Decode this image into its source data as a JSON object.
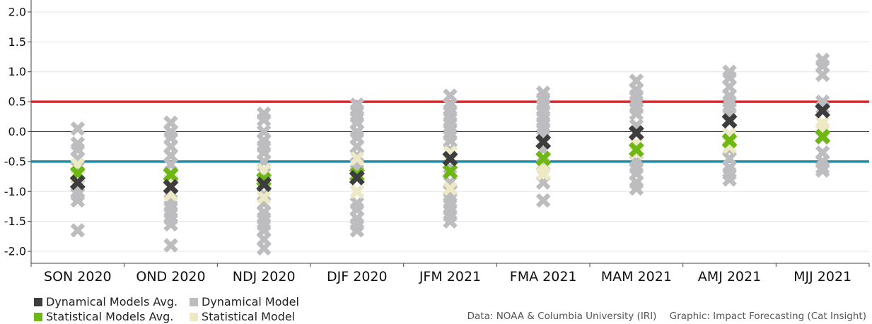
{
  "chart_data": {
    "type": "scatter",
    "title": "",
    "xlabel": "",
    "ylabel": "",
    "ylim": [
      -2.2,
      2.2
    ],
    "yticks": [
      2.0,
      1.5,
      1.0,
      0.5,
      0.0,
      -0.5,
      -1.0,
      -1.5,
      -2.0
    ],
    "ytick_labels": [
      "2.0",
      "1.5",
      "1.0",
      "0.5",
      "0.0",
      "-0.5",
      "-1.0",
      "-1.5",
      "-2.0"
    ],
    "categories": [
      "SON 2020",
      "OND 2020",
      "NDJ 2020",
      "DJF 2020",
      "JFM 2021",
      "FMA 2021",
      "MAM 2021",
      "AMJ 2021",
      "MJJ 2021"
    ],
    "thresholds": [
      {
        "value": 0.5,
        "color": "#e0262b"
      },
      {
        "value": -0.5,
        "color": "#1f8bab"
      },
      {
        "value": 0.0,
        "color": "#333333"
      }
    ],
    "series": [
      {
        "name": "Dynamical Model",
        "color": "#bdbdc0",
        "values": [
          [
            0.05,
            -0.2,
            -0.3,
            -0.45,
            -0.6,
            -0.75,
            -0.9,
            -1.0,
            -1.05,
            -1.15,
            -1.65
          ],
          [
            0.15,
            0.0,
            -0.1,
            -0.25,
            -0.4,
            -0.55,
            -0.7,
            -1.05,
            -1.15,
            -1.25,
            -1.35,
            -1.45,
            -1.55,
            -1.9
          ],
          [
            0.3,
            0.2,
            0.0,
            -0.15,
            -0.25,
            -0.35,
            -0.5,
            -0.7,
            -0.8,
            -1.05,
            -1.2,
            -1.35,
            -1.45,
            -1.55,
            -1.65,
            -1.8,
            -1.95
          ],
          [
            0.45,
            0.35,
            0.25,
            0.15,
            0.0,
            -0.1,
            -0.25,
            -0.4,
            -0.55,
            -0.65,
            -1.2,
            -1.3,
            -1.45,
            -1.55,
            -1.65
          ],
          [
            0.6,
            0.45,
            0.35,
            0.25,
            0.15,
            0.05,
            -0.05,
            -0.15,
            -0.3,
            -0.6,
            -0.85,
            -1.0,
            -1.1,
            -1.2,
            -1.3,
            -1.4,
            -1.5
          ],
          [
            0.65,
            0.55,
            0.45,
            0.35,
            0.25,
            0.15,
            0.05,
            -0.05,
            -0.3,
            -0.55,
            -0.7,
            -0.85,
            -1.15
          ],
          [
            0.85,
            0.7,
            0.6,
            0.5,
            0.4,
            0.3,
            0.1,
            -0.5,
            -0.6,
            -0.7,
            -0.85,
            -0.95
          ],
          [
            1.0,
            0.9,
            0.75,
            0.6,
            0.5,
            0.4,
            0.3,
            -0.05,
            -0.3,
            -0.45,
            -0.6,
            -0.7,
            -0.8
          ],
          [
            1.2,
            1.1,
            0.95,
            0.5,
            0.4,
            -0.1,
            -0.35,
            -0.5,
            -0.6,
            -0.65
          ]
        ]
      },
      {
        "name": "Statistical Model",
        "color": "#ede9c4",
        "values": [
          [
            -0.55,
            -0.75
          ],
          [
            -0.8,
            -1.05
          ],
          [
            -0.65,
            -1.1
          ],
          [
            -0.45,
            -1.0
          ],
          [
            -0.35,
            -0.95
          ],
          [
            -0.6,
            -0.7
          ],
          [
            -0.2,
            -0.35
          ],
          [
            -0.05,
            -0.25
          ],
          [
            0.05,
            0.15
          ]
        ]
      },
      {
        "name": "Statistical Models Avg.",
        "color": "#6fb714",
        "values": [
          -0.7,
          -0.72,
          -0.8,
          -0.72,
          -0.67,
          -0.45,
          -0.3,
          -0.15,
          -0.08
        ]
      },
      {
        "name": "Dynamical Models Avg.",
        "color": "#3d3d3d",
        "values": [
          -0.85,
          -0.92,
          -0.88,
          -0.77,
          -0.45,
          -0.17,
          -0.02,
          0.18,
          0.35
        ]
      }
    ]
  },
  "title_text": "",
  "legend": {
    "rows": [
      [
        {
          "label": "Dynamical Models Avg.",
          "color": "#3d3d3d"
        },
        {
          "label": "Dynamical Model",
          "color": "#bdbdc0"
        }
      ],
      [
        {
          "label": "Statistical Models Avg.",
          "color": "#6fb714"
        },
        {
          "label": "Statistical Model",
          "color": "#ede9c4"
        }
      ]
    ]
  },
  "credits": {
    "data": "Data: NOAA & Columbia University (IRI)",
    "graphic": "Graphic: Impact Forecasting (Cat Insight)"
  }
}
